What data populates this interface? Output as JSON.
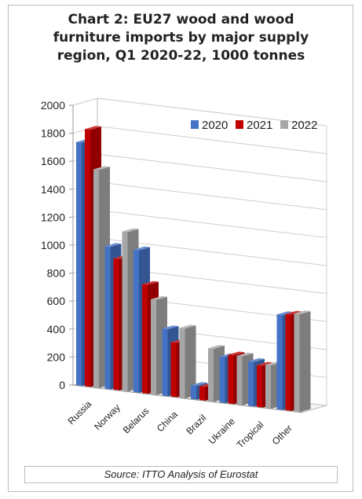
{
  "chart_data": {
    "type": "bar",
    "title_lines": [
      "Chart 2: EU27 wood and wood",
      "furniture imports by major supply",
      "region, Q1 2020-22, 1000 tonnes"
    ],
    "categories": [
      "Russia",
      "Norway",
      "Belarus",
      "China",
      "Brazil",
      "Ukraine",
      "Tropical",
      "Other"
    ],
    "series": [
      {
        "name": "2020",
        "color": "#4472c4",
        "values": [
          1740,
          1020,
          1020,
          480,
          100,
          330,
          320,
          680
        ]
      },
      {
        "name": "2021",
        "color": "#c00000",
        "values": [
          1840,
          940,
          780,
          390,
          100,
          350,
          300,
          690
        ]
      },
      {
        "name": "2022",
        "color": "#a6a6a6",
        "values": [
          1560,
          1140,
          680,
          500,
          380,
          350,
          310,
          700
        ]
      }
    ],
    "yticks": [
      0,
      200,
      400,
      600,
      800,
      1000,
      1200,
      1400,
      1600,
      1800,
      2000
    ],
    "ylim": [
      0,
      2000
    ],
    "grid": true,
    "legend_position": "top-right",
    "source": "Source: ITTO Analysis of Eurostat"
  }
}
